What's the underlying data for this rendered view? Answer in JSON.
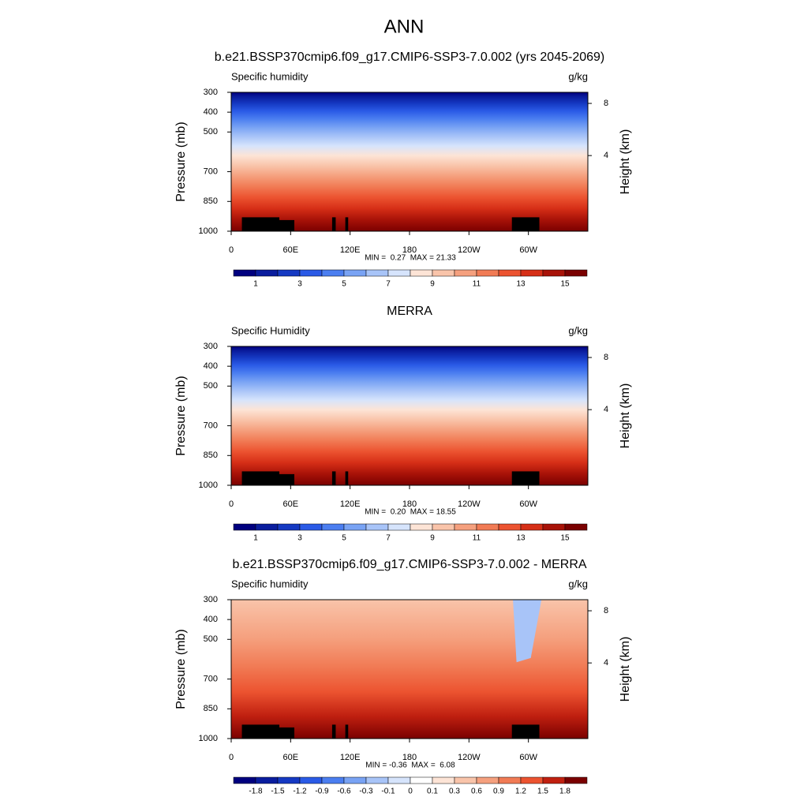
{
  "title": "ANN",
  "chart_data": [
    {
      "type": "contour",
      "title": "b.e21.BSSP370cmip6.f09_g17.CMIP6-SSP3-7.0.002 (yrs 2045-2069)",
      "left_string": "Specific humidity",
      "right_string": "g/kg",
      "ylabel": "Pressure (mb)",
      "y2label": "Height (km)",
      "xlim": [
        0,
        360
      ],
      "xticks": [
        0,
        {
          "value": 60,
          "label": "60E"
        },
        {
          "value": 120,
          "label": "120E"
        },
        180,
        {
          "value": 240,
          "label": "120W"
        },
        {
          "value": 300,
          "label": "60W"
        }
      ],
      "ylim": [
        1000,
        300
      ],
      "yticks": [
        300,
        400,
        500,
        700,
        850,
        1000
      ],
      "y2lim": [
        -1.8,
        8.85
      ],
      "y2ticks": [
        4,
        8
      ],
      "stats": "MIN =  0.27  MAX = 21.33",
      "colorbar": {
        "colors": [
          "#00007f",
          "#0a1d9e",
          "#1539c2",
          "#2a5ae6",
          "#4b7ef0",
          "#79a3f4",
          "#a8c4f8",
          "#d6e4fc",
          "#fde4d6",
          "#f9c4aa",
          "#f5a07e",
          "#f17b55",
          "#ec5330",
          "#d62f17",
          "#a81208",
          "#7a0000"
        ],
        "ticks": [
          1,
          3,
          5,
          7,
          9,
          11,
          13,
          15
        ]
      }
    },
    {
      "type": "contour",
      "title": "MERRA",
      "left_string": "Specific Humidity",
      "right_string": "g/kg",
      "ylabel": "Pressure (mb)",
      "y2label": "Height (km)",
      "xlim": [
        0,
        360
      ],
      "xticks": [
        0,
        {
          "value": 60,
          "label": "60E"
        },
        {
          "value": 120,
          "label": "120E"
        },
        180,
        {
          "value": 240,
          "label": "120W"
        },
        {
          "value": 300,
          "label": "60W"
        }
      ],
      "ylim": [
        1000,
        300
      ],
      "yticks": [
        300,
        400,
        500,
        700,
        850,
        1000
      ],
      "y2lim": [
        -1.8,
        8.85
      ],
      "y2ticks": [
        4,
        8
      ],
      "stats": "MIN =  0.20  MAX = 18.55",
      "colorbar": {
        "colors": [
          "#00007f",
          "#0a1d9e",
          "#1539c2",
          "#2a5ae6",
          "#4b7ef0",
          "#79a3f4",
          "#a8c4f8",
          "#d6e4fc",
          "#fde4d6",
          "#f9c4aa",
          "#f5a07e",
          "#f17b55",
          "#ec5330",
          "#d62f17",
          "#a81208",
          "#7a0000"
        ],
        "ticks": [
          1,
          3,
          5,
          7,
          9,
          11,
          13,
          15
        ]
      }
    },
    {
      "type": "contour",
      "title": "b.e21.BSSP370cmip6.f09_g17.CMIP6-SSP3-7.0.002 - MERRA",
      "left_string": "Specific humidity",
      "right_string": "g/kg",
      "ylabel": "Pressure (mb)",
      "y2label": "Height (km)",
      "xlim": [
        0,
        360
      ],
      "xticks": [
        0,
        {
          "value": 60,
          "label": "60E"
        },
        {
          "value": 120,
          "label": "120E"
        },
        180,
        {
          "value": 240,
          "label": "120W"
        },
        {
          "value": 300,
          "label": "60W"
        }
      ],
      "ylim": [
        1000,
        300
      ],
      "yticks": [
        300,
        400,
        500,
        700,
        850,
        1000
      ],
      "y2lim": [
        -1.8,
        8.85
      ],
      "y2ticks": [
        4,
        8
      ],
      "stats": "MIN = -0.36  MAX =  6.08",
      "colorbar": {
        "colors": [
          "#00007f",
          "#0a1d9e",
          "#1539c2",
          "#2a5ae6",
          "#4b7ef0",
          "#79a3f4",
          "#a8c4f8",
          "#d6e4fc",
          "#ffffff",
          "#fde4d6",
          "#f9c4aa",
          "#f5a07e",
          "#f17b55",
          "#ec5330",
          "#c02010",
          "#7a0000"
        ],
        "ticks": [
          -1.8,
          -1.5,
          -1.2,
          -0.9,
          -0.6,
          -0.3,
          -0.1,
          0,
          0.1,
          0.3,
          0.6,
          0.9,
          1.2,
          1.5,
          1.8
        ]
      }
    }
  ]
}
